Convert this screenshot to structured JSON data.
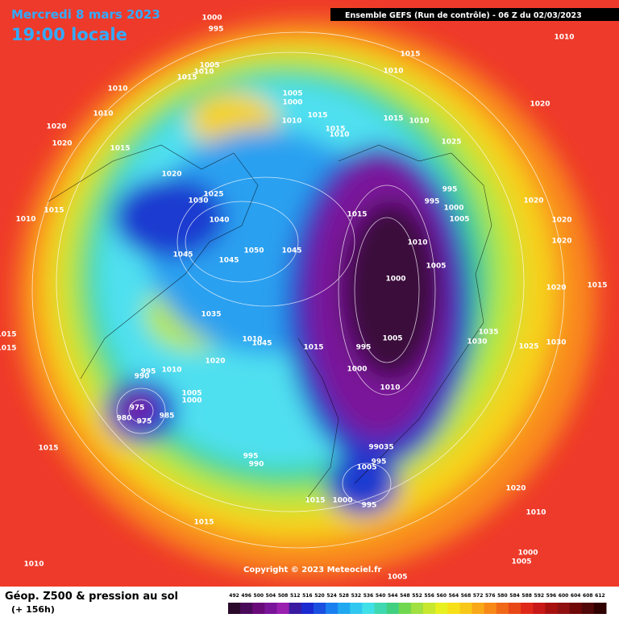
{
  "header": {
    "date": "Mercredi 8 mars 2023",
    "time": "19:00 locale",
    "run": "Ensemble GEFS  (Run de contrôle)  -  06 Z du 02/03/2023"
  },
  "map": {
    "labels": [
      "1000",
      "995",
      "1015",
      "1010",
      "1010",
      "1015",
      "1005",
      "1010",
      "1010",
      "1010",
      "1005",
      "1000",
      "1010",
      "1015",
      "1015",
      "1010",
      "1015",
      "1010",
      "1020",
      "1020",
      "1020",
      "1015",
      "1025",
      "1020",
      "1025",
      "1030",
      "995",
      "995",
      "1000",
      "1005",
      "1020",
      "1020",
      "1010",
      "1015",
      "1040",
      "1015",
      "1010",
      "1020",
      "1045",
      "1045",
      "1050",
      "1045",
      "1005",
      "1000",
      "1020",
      "1015",
      "1035",
      "1035",
      "1030",
      "1025",
      "1030",
      "1015",
      "1015",
      "1010",
      "1045",
      "1015",
      "995",
      "1005",
      "1020",
      "1010",
      "995",
      "990",
      "1000",
      "1010",
      "1005",
      "1000",
      "975",
      "985",
      "980",
      "975",
      "1015",
      "995",
      "990",
      "99035",
      "995",
      "1005",
      "1015",
      "1000",
      "995",
      "1020",
      "1010",
      "1015",
      "1010",
      "1000",
      "1005",
      "1005"
    ]
  },
  "footer": {
    "copyright": "Copyright © 2023 Meteociel.fr",
    "title": "Géop. Z500 & pression au sol",
    "subtitle": "(+ 156h)"
  },
  "legend": {
    "ticks": [
      492,
      496,
      500,
      504,
      508,
      512,
      516,
      520,
      524,
      528,
      532,
      536,
      540,
      544,
      548,
      552,
      556,
      560,
      564,
      568,
      572,
      576,
      580,
      584,
      588,
      592,
      596,
      600,
      604,
      608,
      612
    ]
  }
}
